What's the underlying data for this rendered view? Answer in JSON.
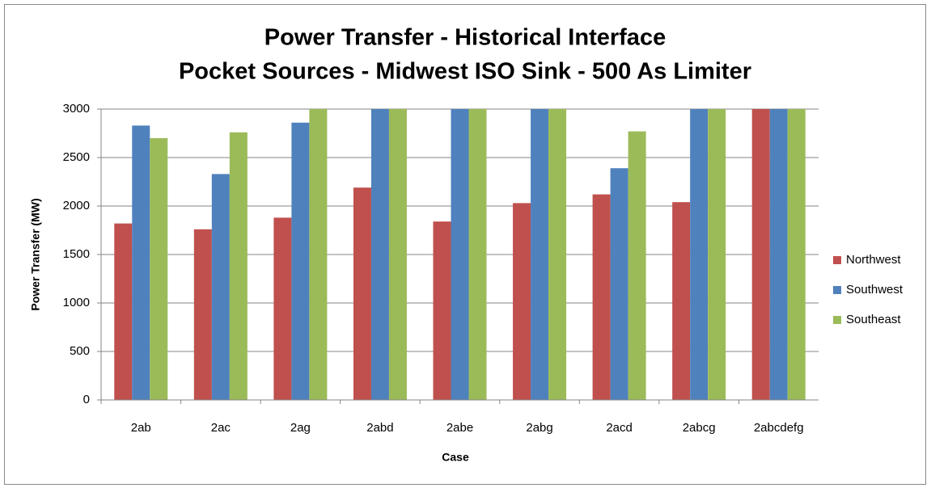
{
  "chart_data": {
    "type": "bar",
    "title": "Power Transfer - Historical Interface",
    "subtitle": "Pocket Sources - Midwest ISO Sink - 500 As Limiter",
    "x_label": "Case",
    "y_label": "Power Transfer (MW)",
    "categories": [
      "2ab",
      "2ac",
      "2ag",
      "2abd",
      "2abe",
      "2abg",
      "2acd",
      "2abcg",
      "2abcdefg"
    ],
    "series": [
      {
        "name": "Northwest",
        "color": "#c0504d",
        "values": [
          1820,
          1760,
          1880,
          2190,
          1840,
          2030,
          2120,
          2040,
          3000
        ]
      },
      {
        "name": "Southwest",
        "color": "#4f81bd",
        "values": [
          2830,
          2330,
          2860,
          3000,
          3000,
          3000,
          2390,
          3000,
          3000
        ]
      },
      {
        "name": "Southeast",
        "color": "#9bbb59",
        "values": [
          2700,
          2760,
          3000,
          3000,
          3000,
          3000,
          2770,
          3000,
          3000
        ]
      }
    ],
    "ylim": [
      0,
      3000
    ],
    "yticks": [
      0,
      500,
      1000,
      1500,
      2000,
      2500,
      3000
    ],
    "grid": true,
    "legend": "right"
  }
}
